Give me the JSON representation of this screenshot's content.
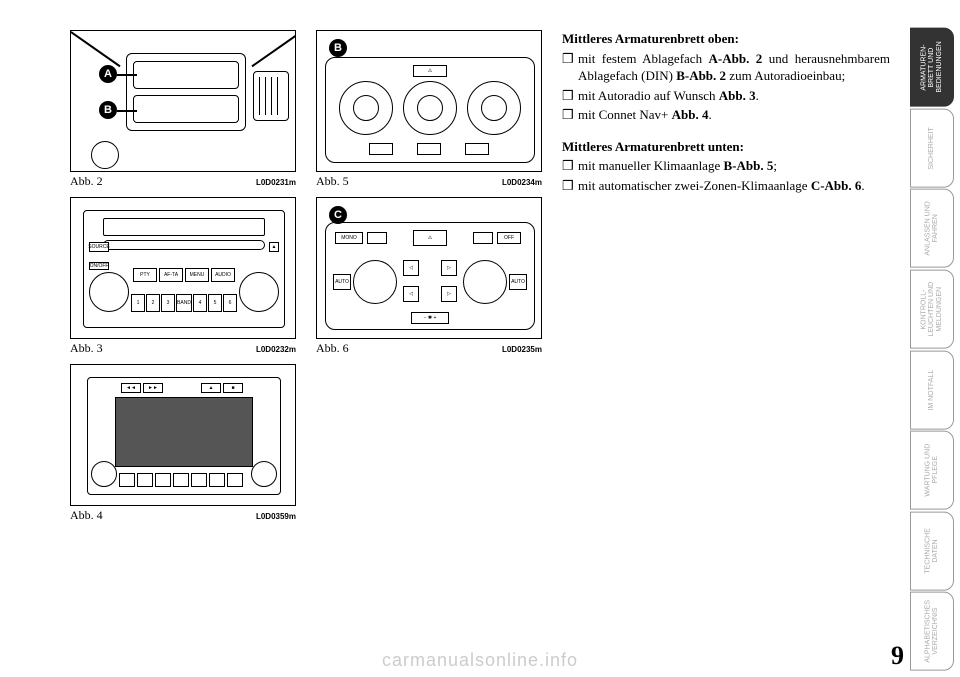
{
  "page_number": "9",
  "watermark": "carmanualsonline.info",
  "figures": {
    "abb2": {
      "label": "Abb. 2",
      "code": "L0D0231m",
      "badges": [
        "A",
        "B"
      ]
    },
    "abb3": {
      "label": "Abb. 3",
      "code": "L0D0232m",
      "buttons_row1": [
        "PTY",
        "AF-TA",
        "MENU",
        "AUDIO"
      ],
      "buttons_row2": [
        "1",
        "2",
        "3",
        "BAND",
        "4",
        "5",
        "6"
      ],
      "left_labels": [
        "SOURCE",
        "ON/OFF"
      ],
      "right_label": "▲"
    },
    "abb4": {
      "label": "Abb. 4",
      "code": "L0D0359m"
    },
    "abb5": {
      "label": "Abb. 5",
      "code": "L0D0234m",
      "badges": [
        "B"
      ]
    },
    "abb6": {
      "label": "Abb. 6",
      "code": "L0D0235m",
      "badges": [
        "C"
      ],
      "labels": [
        "MONO",
        "OFF",
        "AUTO",
        "AUTO"
      ]
    }
  },
  "text": {
    "h1": "Mittleres Armaturenbrett oben:",
    "list1": [
      "mit festem Ablagefach <b>A-Abb. 2</b> und herausnehmbarem Ablagefach (DIN) <b>B-Abb. 2</b> zum Autora­dioeinbau;",
      "mit Autoradio auf Wunsch <b>Abb. 3</b>.",
      "mit Connet Nav+ <b>Abb. 4</b>."
    ],
    "h2": "Mittleres Armaturenbrett unten:",
    "list2": [
      "mit manueller Klimaanlage <b>B-Abb. 5</b>;",
      "mit automatischer zwei-Zonen-Kli­maanlage <b>C-Abb. 6</b>."
    ]
  },
  "tabs": [
    {
      "label": "ARMATUREN-\nBRETT UND\nBEDIENUNGEN",
      "active": true
    },
    {
      "label": "SICHERHEIT",
      "active": false
    },
    {
      "label": "ANLASSEN\nUND FAHREN",
      "active": false
    },
    {
      "label": "KONTROLL-\nLEUCHTEN UND\nMELDUNGEN",
      "active": false
    },
    {
      "label": "IM NOTFALL",
      "active": false
    },
    {
      "label": "WARTUNG\nUND PFLEGE",
      "active": false
    },
    {
      "label": "TECHNISCHE\nDATEN",
      "active": false
    },
    {
      "label": "ALPHABETISCHES\nVERZEICHNIS",
      "active": false
    }
  ],
  "colors": {
    "page_bg": "#ffffff",
    "tab_active_bg": "#333333",
    "tab_inactive_text": "#aaaaaa",
    "watermark": "#cccccc"
  }
}
